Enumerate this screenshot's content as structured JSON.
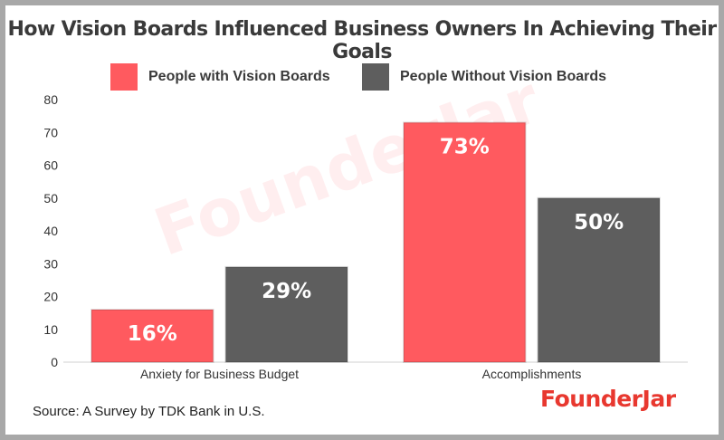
{
  "title": "How Vision Boards Influenced Business Owners In Achieving Their Goals",
  "source": "Source: A Survey by TDK Bank in U.S.",
  "brand": "FounderJar",
  "colors": {
    "accent": "#ff5a5f",
    "secondary": "#5e5e5e",
    "brand": "#e8382f"
  },
  "chart_data": {
    "type": "bar",
    "categories": [
      "Anxiety for Business Budget",
      "Accomplishments"
    ],
    "series": [
      {
        "name": "People with Vision Boards",
        "values": [
          16,
          73
        ],
        "labels": [
          "16%",
          "73%"
        ],
        "color": "#ff5a5f"
      },
      {
        "name": "People Without Vision Boards",
        "values": [
          29,
          50
        ],
        "labels": [
          "29%",
          "50%"
        ],
        "color": "#5e5e5e"
      }
    ],
    "title": "How Vision Boards Influenced Business Owners In Achieving Their Goals",
    "ylim": [
      0,
      80
    ],
    "yticks": [
      "0",
      "10",
      "20",
      "30",
      "40",
      "50",
      "60",
      "70",
      "80"
    ],
    "grid": false,
    "legend": "top"
  }
}
